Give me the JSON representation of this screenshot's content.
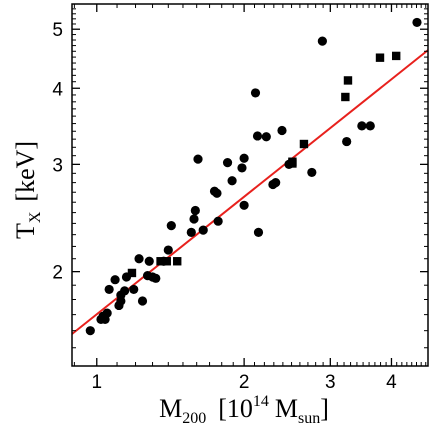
{
  "chart_data": {
    "type": "scatter",
    "x_scale": "log",
    "y_scale": "log",
    "xlim": [
      0.89,
      4.75
    ],
    "ylim": [
      1.4,
      5.5
    ],
    "x_ticks": [
      1,
      2,
      3,
      4
    ],
    "x_tick_labels": [
      "1",
      "2",
      "3",
      "4"
    ],
    "y_ticks": [
      2,
      3,
      4,
      5
    ],
    "y_tick_labels": [
      "2",
      "3",
      "4",
      "5"
    ],
    "xlabel": {
      "main": "M",
      "main_sub": "200",
      "open_bracket": "[10",
      "exp": "14",
      "unit": "M",
      "unit_sub": "sun",
      "close_bracket": "]"
    },
    "ylabel": {
      "main": "T",
      "main_sub": "X",
      "unit": "[keV]"
    },
    "grid": false,
    "legend": "none",
    "colors": {
      "points": "#000000",
      "fit_line": "#e8211d",
      "axes": "#000000"
    },
    "series": [
      {
        "marker": "circle",
        "points": [
          [
            0.97,
            1.6
          ],
          [
            1.02,
            1.67
          ],
          [
            1.03,
            1.69
          ],
          [
            1.04,
            1.67
          ],
          [
            1.05,
            1.71
          ],
          [
            1.06,
            1.87
          ],
          [
            1.09,
            1.94
          ],
          [
            1.11,
            1.76
          ],
          [
            1.12,
            1.79
          ],
          [
            1.12,
            1.83
          ],
          [
            1.14,
            1.86
          ],
          [
            1.15,
            1.96
          ],
          [
            1.19,
            1.87
          ],
          [
            1.22,
            2.1
          ],
          [
            1.24,
            1.79
          ],
          [
            1.27,
            1.97
          ],
          [
            1.28,
            2.08
          ],
          [
            1.3,
            1.96
          ],
          [
            1.32,
            1.95
          ],
          [
            1.37,
            2.08
          ],
          [
            1.4,
            2.17
          ],
          [
            1.42,
            2.38
          ],
          [
            1.56,
            2.32
          ],
          [
            1.58,
            2.44
          ],
          [
            1.59,
            2.52
          ],
          [
            1.61,
            3.06
          ],
          [
            1.65,
            2.34
          ],
          [
            1.74,
            2.71
          ],
          [
            1.76,
            2.69
          ],
          [
            1.77,
            2.42
          ],
          [
            1.85,
            3.02
          ],
          [
            1.89,
            2.82
          ],
          [
            1.98,
            2.96
          ],
          [
            2.0,
            3.07
          ],
          [
            2.0,
            2.57
          ],
          [
            2.11,
            3.93
          ],
          [
            2.13,
            3.34
          ],
          [
            2.14,
            2.32
          ],
          [
            2.22,
            3.33
          ],
          [
            2.29,
            2.78
          ],
          [
            2.32,
            2.8
          ],
          [
            2.39,
            3.41
          ],
          [
            2.47,
            3.0
          ],
          [
            2.75,
            2.91
          ],
          [
            2.89,
            4.78
          ],
          [
            3.24,
            3.27
          ],
          [
            3.48,
            3.47
          ],
          [
            3.62,
            3.47
          ],
          [
            4.51,
            5.13
          ]
        ]
      },
      {
        "marker": "square",
        "points": [
          [
            1.18,
            1.99
          ],
          [
            1.35,
            2.08
          ],
          [
            1.39,
            2.08
          ],
          [
            1.46,
            2.08
          ],
          [
            2.51,
            3.01
          ],
          [
            2.51,
            3.03
          ],
          [
            2.65,
            3.24
          ],
          [
            3.22,
            3.87
          ],
          [
            3.26,
            4.12
          ],
          [
            3.79,
            4.49
          ],
          [
            4.09,
            4.52
          ]
        ]
      }
    ],
    "fit_line": {
      "name": "",
      "x": [
        0.89,
        4.75
      ],
      "y": [
        1.58,
        4.62
      ]
    }
  }
}
